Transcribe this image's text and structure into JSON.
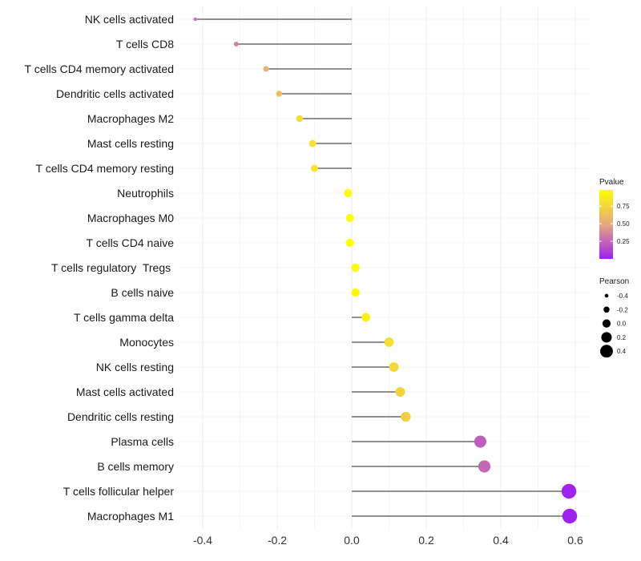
{
  "chart_data": {
    "type": "lollipop",
    "categories": [
      "NK cells activated",
      "T cells CD8",
      "T cells CD4 memory activated",
      "Dendritic cells activated",
      "Macrophages M2",
      "Mast cells resting",
      "T cells CD4 memory resting",
      "Neutrophils",
      "Macrophages M0",
      "T cells CD4 naive",
      "T cells regulatory  Tregs ",
      "B cells naive",
      "T cells gamma delta",
      "Monocytes",
      "NK cells resting",
      "Mast cells activated",
      "Dendritic cells resting",
      "Plasma cells",
      "B cells memory",
      "T cells follicular helper",
      "Macrophages M1"
    ],
    "pearson": [
      -0.42,
      -0.31,
      -0.23,
      -0.195,
      -0.14,
      -0.105,
      -0.1,
      -0.01,
      -0.005,
      -0.005,
      0.01,
      0.01,
      0.038,
      0.1,
      0.113,
      0.13,
      0.145,
      0.345,
      0.356,
      0.583,
      0.585
    ],
    "pvalue": [
      0.29,
      0.36,
      0.55,
      0.62,
      0.78,
      0.82,
      0.84,
      0.97,
      0.98,
      0.98,
      0.96,
      0.96,
      0.9,
      0.8,
      0.76,
      0.73,
      0.7,
      0.22,
      0.26,
      0.01,
      0.0
    ],
    "xlim": [
      -0.45,
      0.64
    ],
    "xticks": [
      -0.4,
      -0.2,
      0.0,
      0.2,
      0.4,
      0.6
    ],
    "xtick_labels": [
      "-0.4",
      "-0.2",
      "0.0",
      "0.2",
      "0.4",
      "0.6"
    ],
    "xlabel": "",
    "ylabel": "",
    "color_legend": {
      "title": "Pvalue",
      "ticks": [
        0.75,
        0.5,
        0.25
      ],
      "tick_labels": [
        "0.75",
        "0.50",
        "0.25"
      ],
      "range": [
        0.0,
        0.98
      ],
      "low_color": "#a020f0",
      "mid_color": "#e6a87e",
      "high_color": "#ffff00"
    },
    "size_legend": {
      "title": "Pearson",
      "values": [
        -0.4,
        -0.2,
        0.0,
        0.2,
        0.4
      ],
      "labels": [
        "-0.4",
        "-0.2",
        "0.0",
        "0.2",
        "0.4"
      ]
    },
    "grid": true,
    "legend_position": "right"
  }
}
